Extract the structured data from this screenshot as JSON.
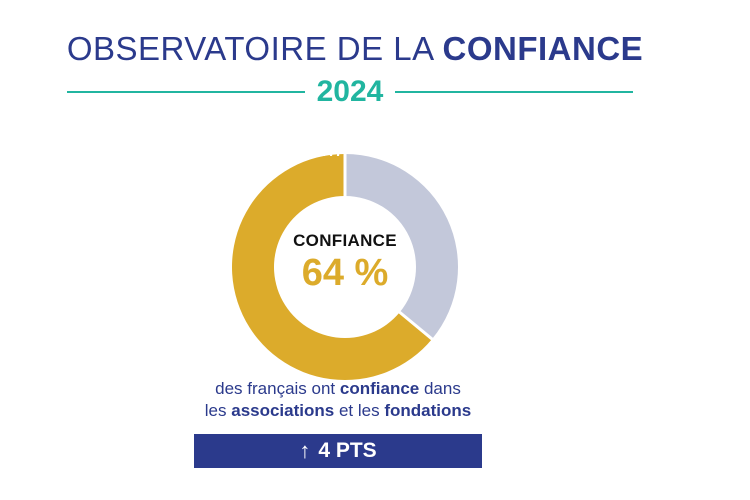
{
  "header": {
    "title_light": "OBSERVATOIRE DE LA ",
    "title_bold": "CONFIANCE",
    "year": "2024"
  },
  "chart_data": {
    "type": "pie",
    "center_title": "CONFIANCE",
    "center_value": "64 %",
    "series": [
      {
        "values": [
          64,
          36
        ]
      }
    ],
    "colors": [
      "#dcab2b",
      "#c3c8da"
    ]
  },
  "caption": {
    "line1_pre": "des français ont ",
    "line1_bold": "confiance",
    "line1_post": " dans",
    "line2_pre": "les ",
    "line2_bold1": "associations",
    "line2_mid": " et les ",
    "line2_bold2": "fondations"
  },
  "badge": {
    "arrow": "↑",
    "text": "4 PTS"
  }
}
